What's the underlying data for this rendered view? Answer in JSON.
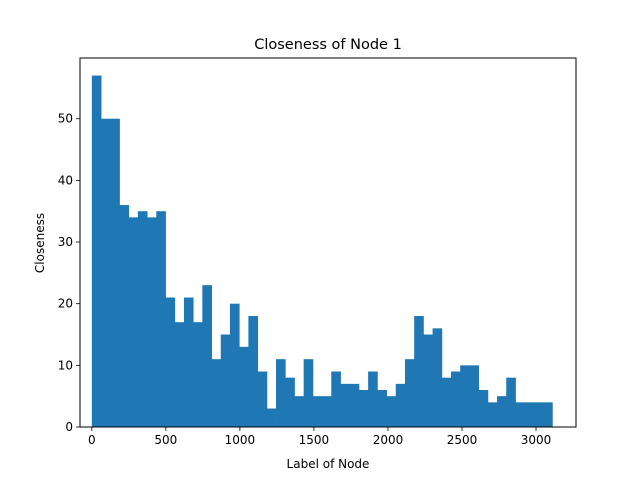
{
  "chart_data": {
    "type": "bar",
    "title": "Closeness of Node 1",
    "xlabel": "Label of Node",
    "ylabel": "Closeness",
    "xlim": [
      -80,
      3270
    ],
    "ylim": [
      0,
      59.85
    ],
    "xticks": [
      0,
      500,
      1000,
      1500,
      2000,
      2500,
      3000
    ],
    "xtick_labels": [
      "0",
      "500",
      "1000",
      "1500",
      "2000",
      "2500",
      "3000"
    ],
    "yticks": [
      0,
      10,
      20,
      30,
      40,
      50
    ],
    "ytick_labels": [
      "0",
      "10",
      "20",
      "30",
      "40",
      "50"
    ],
    "grid": false,
    "bar_color": "#1f77b4",
    "bin_start": 0,
    "bin_width": 62.2,
    "values": [
      57,
      50,
      50,
      36,
      34,
      35,
      34,
      35,
      21,
      17,
      21,
      17,
      23,
      11,
      15,
      20,
      13,
      18,
      9,
      3,
      11,
      8,
      5,
      11,
      5,
      5,
      9,
      7,
      7,
      6,
      9,
      6,
      5,
      7,
      11,
      18,
      15,
      16,
      8,
      9,
      10,
      10,
      6,
      4,
      5,
      8,
      4,
      4,
      4,
      4
    ]
  }
}
